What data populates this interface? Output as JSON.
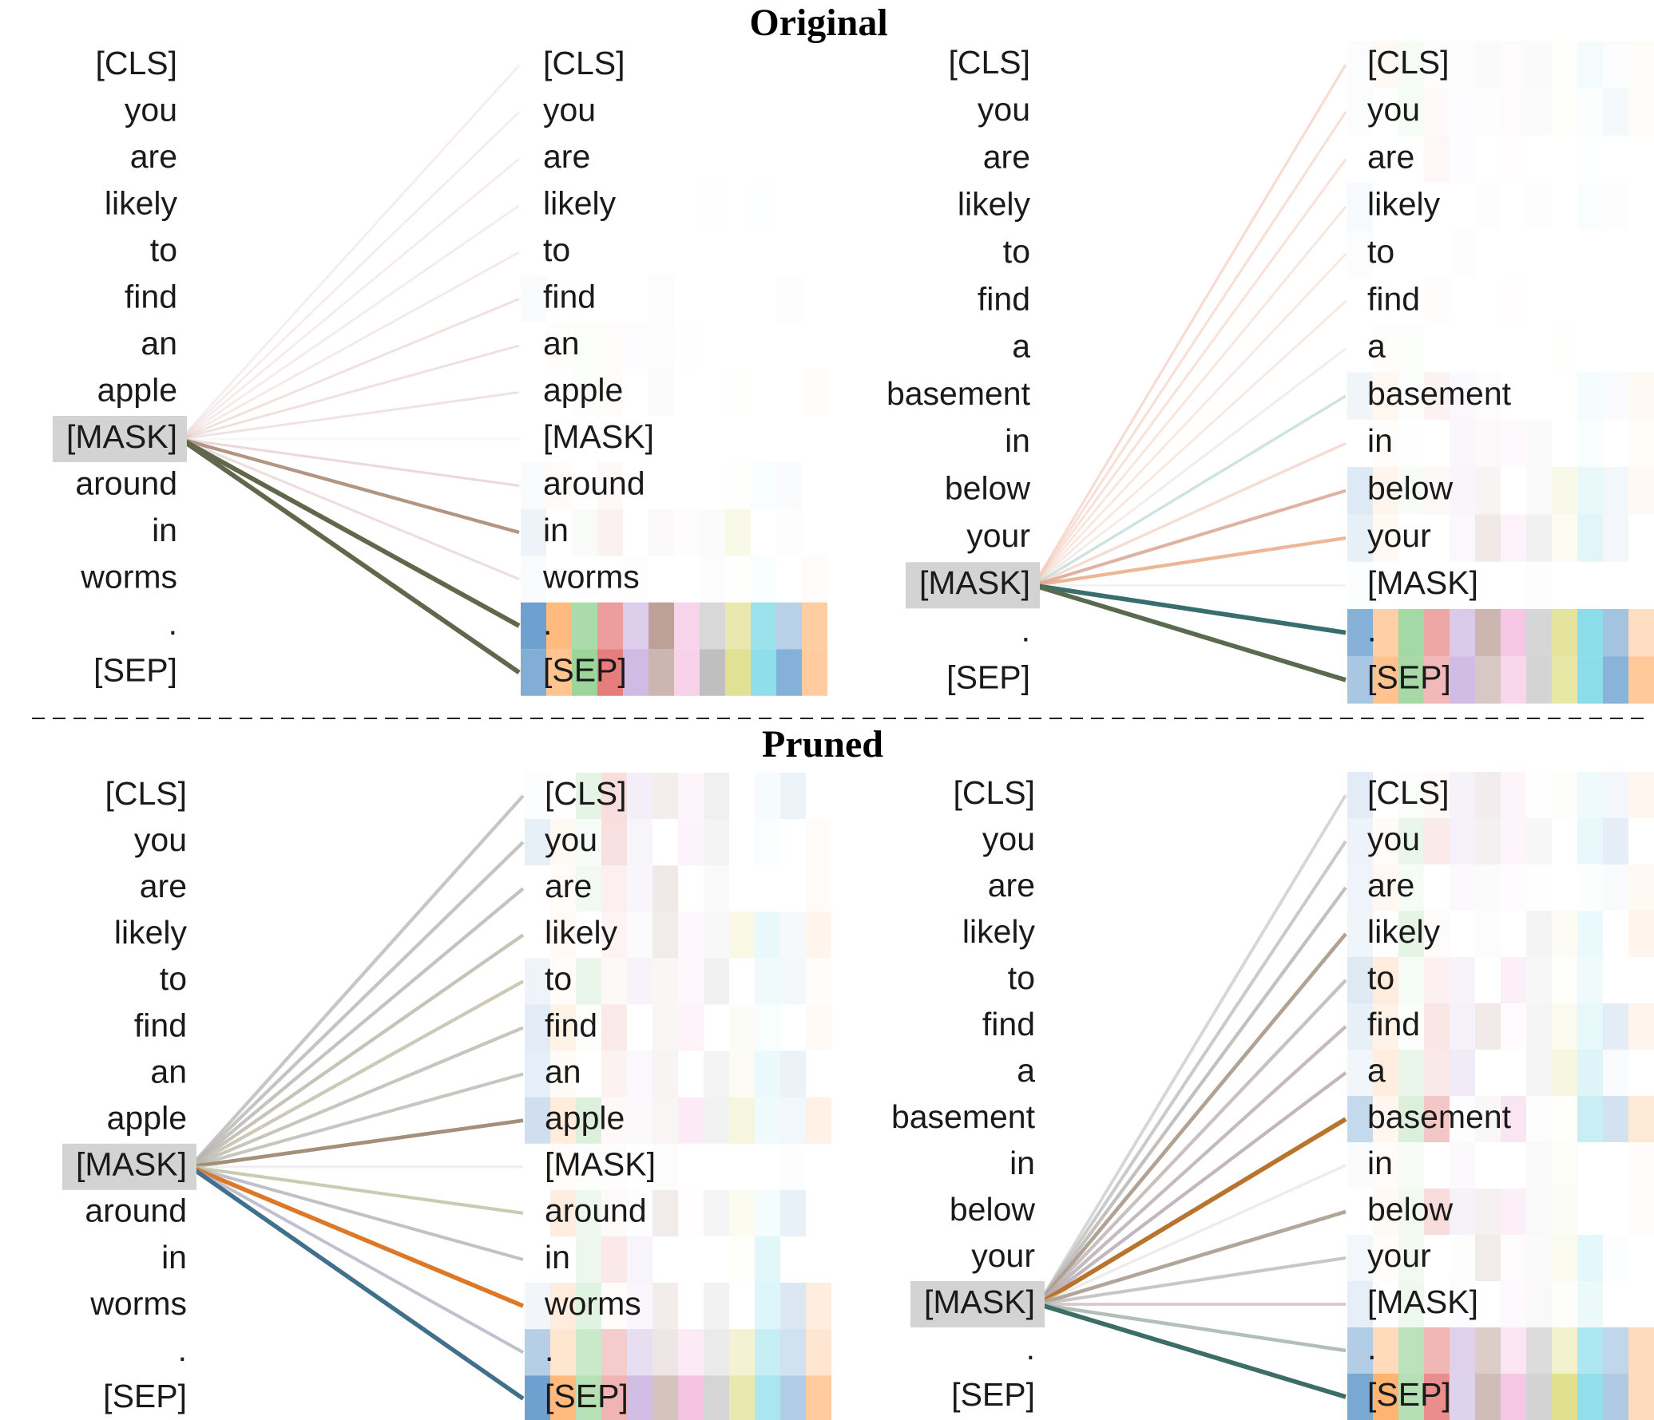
{
  "titles": {
    "top": "Original",
    "bottom": "Pruned"
  },
  "panels": [
    {
      "section": "Original",
      "tokens": [
        "[CLS]",
        "you",
        "are",
        "likely",
        "to",
        "find",
        "an",
        "apple",
        "[MASK]",
        "around",
        "in",
        "worms",
        ".",
        "[SEP]"
      ],
      "query_index": 8,
      "attention": [
        0.04,
        0.06,
        0.06,
        0.08,
        0.08,
        0.1,
        0.1,
        0.12,
        0.06,
        0.14,
        0.45,
        0.16,
        0.85,
        0.85
      ],
      "line_colors": [
        "#e8cfd2",
        "#e8cfd2",
        "#e8cfd2",
        "#e8cfd2",
        "#e6ccc8",
        "#dcbcb4",
        "#dcbcb4",
        "#e0c4c8",
        "#eeeeee",
        "#d8b4b4",
        "#a07a64",
        "#dcbcbc",
        "#62664a",
        "#62664a"
      ]
    },
    {
      "section": "Original",
      "tokens": [
        "[CLS]",
        "you",
        "are",
        "likely",
        "to",
        "find",
        "a",
        "basement",
        "in",
        "below",
        "your",
        "[MASK]",
        ".",
        "[SEP]"
      ],
      "query_index": 11,
      "attention": [
        0.18,
        0.18,
        0.14,
        0.12,
        0.1,
        0.1,
        0.1,
        0.22,
        0.22,
        0.4,
        0.45,
        0.08,
        0.8,
        0.8
      ],
      "line_colors": [
        "#f0bcac",
        "#f0c4b4",
        "#f0c4b4",
        "#f0ccbc",
        "#f0ccbc",
        "#f0ccbc",
        "#e0d8d0",
        "#a8ccc8",
        "#f0c4b4",
        "#d49a84",
        "#e8a47c",
        "#e4e4e0",
        "#3a6e6e",
        "#5a6a4e"
      ]
    },
    {
      "section": "Pruned",
      "tokens": [
        "[CLS]",
        "you",
        "are",
        "likely",
        "to",
        "find",
        "an",
        "apple",
        "[MASK]",
        "around",
        "in",
        "worms",
        ".",
        "[SEP]"
      ],
      "query_index": 8,
      "attention": [
        0.45,
        0.45,
        0.45,
        0.45,
        0.45,
        0.42,
        0.4,
        0.55,
        0.14,
        0.4,
        0.38,
        0.75,
        0.38,
        0.75
      ],
      "line_colors": [
        "#b8b8b8",
        "#b8b4b4",
        "#b4b4b0",
        "#b8b4a8",
        "#c0bca8",
        "#b8b4ac",
        "#b4b4ac",
        "#9a8468",
        "#e0dcdc",
        "#b4bc98",
        "#a8a8b4",
        "#dc7828",
        "#a8a8bc",
        "#40708c"
      ]
    },
    {
      "section": "Pruned",
      "tokens": [
        "[CLS]",
        "you",
        "are",
        "likely",
        "to",
        "find",
        "a",
        "basement",
        "in",
        "below",
        "your",
        "[MASK]",
        ".",
        "[SEP]"
      ],
      "query_index": 11,
      "attention": [
        0.35,
        0.4,
        0.45,
        0.55,
        0.45,
        0.45,
        0.45,
        0.8,
        0.22,
        0.55,
        0.4,
        0.3,
        0.5,
        0.8
      ],
      "line_colors": [
        "#c4c4c4",
        "#b8b8b8",
        "#b4b0ac",
        "#a89888",
        "#bcb0b0",
        "#b8a8b0",
        "#b4a4b0",
        "#b8742c",
        "#e4dcdc",
        "#a89c8c",
        "#b4b4b4",
        "#c0aab0",
        "#a4b4ac",
        "#3c6e66"
      ]
    }
  ],
  "head_colors": [
    "#3b7fbf",
    "#ff9e4a",
    "#6cc06c",
    "#e05f5f",
    "#b89ad6",
    "#ad8a80",
    "#f0a8d6",
    "#b0b0b0",
    "#d6d66a",
    "#55cde0",
    "#6a9ece",
    "#ffb77a"
  ],
  "separator": {
    "style": "dashed",
    "color": "#222222"
  }
}
